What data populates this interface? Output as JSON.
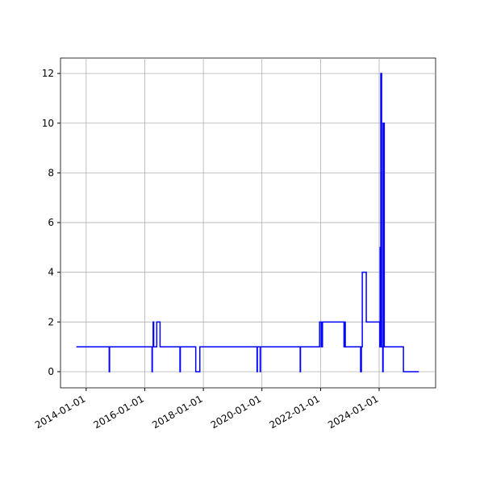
{
  "chart_data": {
    "type": "step",
    "color": "#0000ff",
    "grid": true,
    "series": [
      {
        "x": [
          "2013-09-01",
          "2014-10-15",
          "2014-10-20",
          "2016-04-01",
          "2016-04-05",
          "2016-04-15",
          "2016-04-22",
          "2016-05-30",
          "2016-07-10",
          "2017-03-15",
          "2017-03-20",
          "2017-09-28",
          "2017-11-18",
          "2019-11-01",
          "2019-11-05",
          "2019-12-10",
          "2019-12-14",
          "2021-04-22",
          "2021-04-26",
          "2021-12-20",
          "2022-01-10",
          "2022-01-25",
          "2022-10-20",
          "2022-10-28",
          "2022-11-05",
          "2023-05-15",
          "2023-05-25",
          "2023-06-05",
          "2023-07-25",
          "2024-01-10",
          "2024-01-14",
          "2024-01-18",
          "2024-01-22",
          "2024-02-01",
          "2024-02-15",
          "2024-02-20",
          "2024-03-05",
          "2024-10-30",
          "2025-05-10"
        ],
        "values": [
          1,
          0,
          1,
          0,
          1,
          2,
          1,
          2,
          1,
          0,
          1,
          0,
          1,
          0,
          1,
          0,
          1,
          0,
          1,
          2,
          1,
          2,
          1,
          2,
          1,
          0,
          1,
          4,
          2,
          1,
          5,
          1,
          12,
          1,
          0,
          10,
          1,
          0,
          0
        ]
      }
    ],
    "xlim": [
      "2013-02-15",
      "2025-12-05"
    ],
    "xticks": [
      "2014-01-01",
      "2016-01-01",
      "2018-01-01",
      "2020-01-01",
      "2022-01-01",
      "2024-01-01"
    ],
    "ylim": [
      -0.65,
      12.62
    ],
    "yticks": [
      0,
      2,
      4,
      6,
      8,
      10,
      12
    ]
  }
}
